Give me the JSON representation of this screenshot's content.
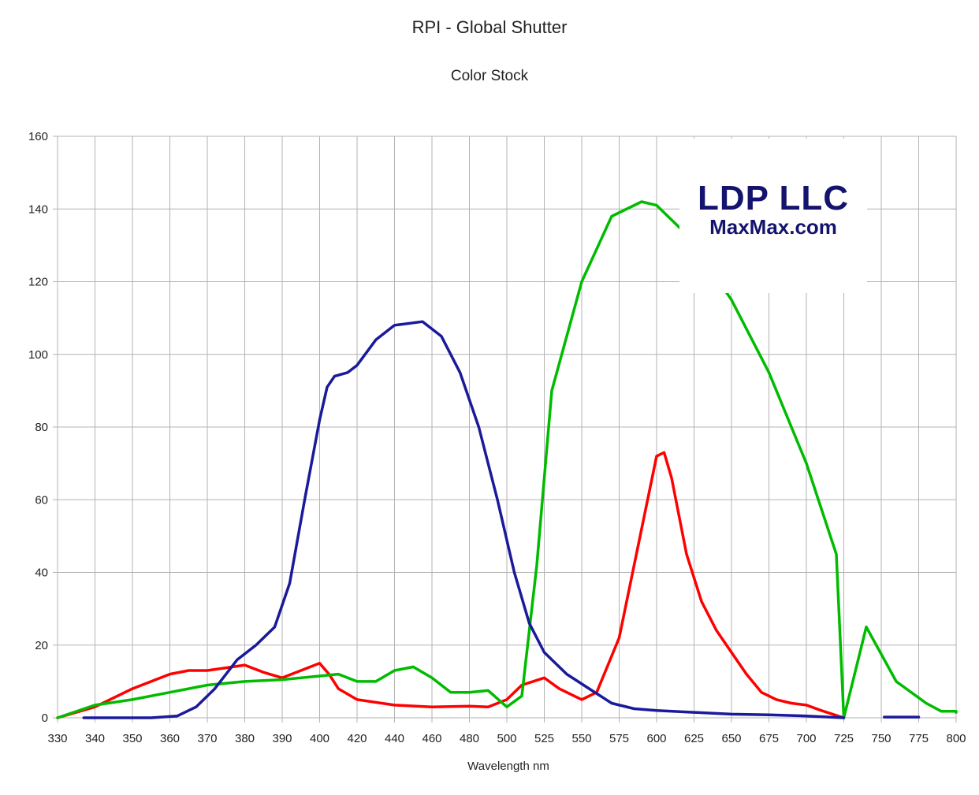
{
  "chart_data": {
    "type": "line",
    "title": "RPI - Global Shutter",
    "subtitle": "Color Stock",
    "xlabel": "Wavelength nm",
    "ylabel": "",
    "ylim": [
      0,
      160
    ],
    "yticks": [
      0,
      20,
      40,
      60,
      80,
      100,
      120,
      140,
      160
    ],
    "xticks": [
      "330",
      "340",
      "350",
      "360",
      "370",
      "380",
      "390",
      "400",
      "420",
      "440",
      "460",
      "480",
      "500",
      "525",
      "550",
      "575",
      "600",
      "625",
      "650",
      "675",
      "700",
      "725",
      "750",
      "775",
      "800"
    ],
    "grid": true,
    "legend": "none",
    "watermark": {
      "line1": "LDP LLC",
      "line2": "MaxMax.com"
    },
    "series": [
      {
        "color": "#ff0000",
        "points": [
          [
            330,
            0
          ],
          [
            340,
            3
          ],
          [
            350,
            8
          ],
          [
            360,
            12
          ],
          [
            365,
            13
          ],
          [
            370,
            13
          ],
          [
            380,
            14.5
          ],
          [
            385,
            12.5
          ],
          [
            390,
            11
          ],
          [
            395,
            13
          ],
          [
            400,
            15
          ],
          [
            405,
            12
          ],
          [
            410,
            8
          ],
          [
            420,
            5
          ],
          [
            440,
            3.5
          ],
          [
            460,
            3
          ],
          [
            480,
            3.2
          ],
          [
            490,
            3
          ],
          [
            500,
            5
          ],
          [
            510,
            9
          ],
          [
            525,
            11
          ],
          [
            535,
            8
          ],
          [
            550,
            5
          ],
          [
            560,
            7
          ],
          [
            575,
            22
          ],
          [
            590,
            52
          ],
          [
            600,
            72
          ],
          [
            605,
            73
          ],
          [
            610,
            66
          ],
          [
            620,
            45
          ],
          [
            630,
            32
          ],
          [
            640,
            24
          ],
          [
            650,
            18
          ],
          [
            660,
            12
          ],
          [
            670,
            7
          ],
          [
            680,
            5
          ],
          [
            690,
            4
          ],
          [
            700,
            3.5
          ],
          [
            710,
            2
          ],
          [
            725,
            0
          ]
        ]
      },
      {
        "color": "#00bb00",
        "points": [
          [
            330,
            0
          ],
          [
            340,
            3.5
          ],
          [
            350,
            5
          ],
          [
            360,
            7
          ],
          [
            370,
            9
          ],
          [
            380,
            10
          ],
          [
            390,
            10.5
          ],
          [
            400,
            11.5
          ],
          [
            410,
            12
          ],
          [
            420,
            10
          ],
          [
            430,
            10
          ],
          [
            440,
            13
          ],
          [
            450,
            14
          ],
          [
            460,
            11
          ],
          [
            470,
            7
          ],
          [
            480,
            7
          ],
          [
            490,
            7.5
          ],
          [
            500,
            3
          ],
          [
            510,
            6
          ],
          [
            520,
            42
          ],
          [
            530,
            90
          ],
          [
            550,
            120
          ],
          [
            570,
            138
          ],
          [
            590,
            142
          ],
          [
            600,
            141
          ],
          [
            620,
            133
          ],
          [
            650,
            115
          ],
          [
            675,
            95
          ],
          [
            700,
            70
          ],
          [
            720,
            45
          ],
          [
            740,
            25
          ],
          [
            760,
            10
          ],
          [
            780,
            4
          ],
          [
            790,
            1.8
          ],
          [
            800,
            1.8
          ],
          [
            810,
            1.5
          ],
          [
            725,
            0
          ]
        ]
      },
      {
        "color": "#1a1a9a",
        "points": [
          [
            337,
            0
          ],
          [
            355,
            0
          ],
          [
            362,
            0.5
          ],
          [
            367,
            3
          ],
          [
            372,
            8
          ],
          [
            378,
            16
          ],
          [
            383,
            20
          ],
          [
            388,
            25
          ],
          [
            392,
            37
          ],
          [
            396,
            60
          ],
          [
            400,
            82
          ],
          [
            404,
            91
          ],
          [
            408,
            94
          ],
          [
            415,
            95
          ],
          [
            420,
            97
          ],
          [
            430,
            104
          ],
          [
            440,
            108
          ],
          [
            455,
            109
          ],
          [
            465,
            105
          ],
          [
            475,
            95
          ],
          [
            485,
            80
          ],
          [
            495,
            60
          ],
          [
            505,
            40
          ],
          [
            515,
            26
          ],
          [
            525,
            18
          ],
          [
            540,
            12
          ],
          [
            555,
            8
          ],
          [
            570,
            4
          ],
          [
            585,
            2.5
          ],
          [
            600,
            2
          ],
          [
            625,
            1.5
          ],
          [
            650,
            1
          ],
          [
            675,
            0.8
          ],
          [
            700,
            0.5
          ],
          [
            725,
            0
          ]
        ]
      },
      {
        "color": "#1a1a9a",
        "points": [
          [
            752,
            0.2
          ],
          [
            775,
            0.2
          ]
        ]
      }
    ]
  }
}
